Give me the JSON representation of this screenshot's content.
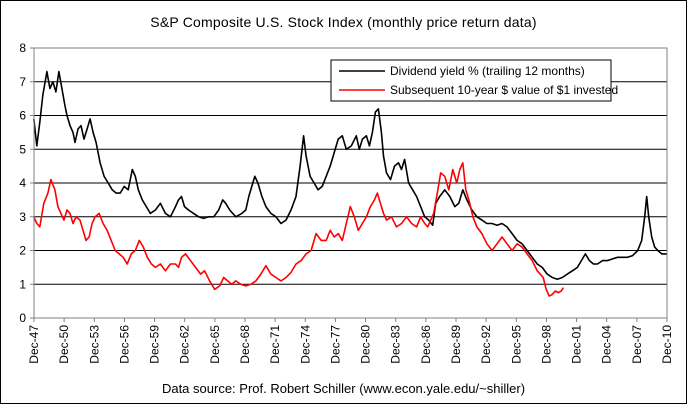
{
  "chart_data": {
    "type": "line",
    "title": "S&P Composite U.S. Stock Index (monthly price return data)",
    "source": "Data source:  Prof. Robert Schiller (www.econ.yale.edu/~shiller)",
    "ylim": [
      0,
      8
    ],
    "yticks": [
      "0",
      "1",
      "2",
      "3",
      "4",
      "5",
      "6",
      "7",
      "8"
    ],
    "x_range": [
      1947.92,
      2010.92
    ],
    "xticks": [
      "Dec-47",
      "Dec-50",
      "Dec-53",
      "Dec-56",
      "Dec-59",
      "Dec-62",
      "Dec-65",
      "Dec-68",
      "Dec-71",
      "Dec-74",
      "Dec-77",
      "Dec-80",
      "Dec-83",
      "Dec-86",
      "Dec-89",
      "Dec-92",
      "Dec-95",
      "Dec-98",
      "Dec-01",
      "Dec-04",
      "Dec-07",
      "Dec-10"
    ],
    "grid": true,
    "legend_position": "top-right",
    "series": [
      {
        "name": "Dividend yield % (trailing 12 months)",
        "color": "#000000",
        "x": [
          1947.9,
          1948.2,
          1948.5,
          1948.8,
          1949.2,
          1949.5,
          1949.8,
          1950.1,
          1950.4,
          1950.7,
          1951.0,
          1951.2,
          1951.5,
          1951.8,
          1952.0,
          1952.3,
          1952.6,
          1952.9,
          1953.2,
          1953.5,
          1953.8,
          1954.1,
          1954.5,
          1954.9,
          1955.3,
          1955.7,
          1956.1,
          1956.5,
          1956.9,
          1957.3,
          1957.7,
          1958.0,
          1958.3,
          1958.7,
          1959.1,
          1959.5,
          1960.0,
          1960.5,
          1961.0,
          1961.5,
          1962.0,
          1962.3,
          1962.6,
          1962.9,
          1963.3,
          1963.8,
          1964.3,
          1964.8,
          1965.3,
          1965.8,
          1966.3,
          1966.7,
          1967.0,
          1967.4,
          1968.0,
          1968.6,
          1969.0,
          1969.3,
          1969.6,
          1969.9,
          1970.2,
          1970.6,
          1971.0,
          1971.5,
          1972.0,
          1972.5,
          1973.0,
          1973.5,
          1974.0,
          1974.4,
          1974.75,
          1975.0,
          1975.4,
          1975.8,
          1976.2,
          1976.6,
          1977.0,
          1977.4,
          1977.8,
          1978.2,
          1978.6,
          1979.0,
          1979.5,
          1980.0,
          1980.3,
          1980.6,
          1981.0,
          1981.3,
          1981.6,
          1981.9,
          1982.2,
          1982.5,
          1982.7,
          1983.0,
          1983.4,
          1983.8,
          1984.2,
          1984.5,
          1984.8,
          1985.2,
          1985.6,
          1986.0,
          1986.4,
          1986.8,
          1987.2,
          1987.6,
          1987.9,
          1988.3,
          1988.8,
          1989.3,
          1989.8,
          1990.2,
          1990.6,
          1991.0,
          1991.5,
          1992.0,
          1992.5,
          1993.0,
          1993.5,
          1994.0,
          1994.5,
          1995.0,
          1995.5,
          1996.0,
          1996.5,
          1997.0,
          1997.5,
          1998.0,
          1998.5,
          1999.0,
          1999.5,
          2000.0,
          2000.5,
          2001.0,
          2001.5,
          2002.0,
          2002.4,
          2002.8,
          2003.2,
          2003.6,
          2004.0,
          2004.5,
          2005.0,
          2005.5,
          2006.0,
          2006.5,
          2007.0,
          2007.5,
          2008.0,
          2008.4,
          2008.7,
          2008.9,
          2009.1,
          2009.4,
          2009.7,
          2010.0,
          2010.4,
          2010.9
        ],
        "values": [
          5.9,
          5.1,
          5.8,
          6.6,
          7.3,
          6.8,
          7.0,
          6.7,
          7.3,
          6.8,
          6.3,
          6.0,
          5.7,
          5.5,
          5.2,
          5.6,
          5.7,
          5.3,
          5.6,
          5.9,
          5.5,
          5.2,
          4.6,
          4.2,
          4.0,
          3.8,
          3.7,
          3.7,
          3.9,
          3.8,
          4.4,
          4.2,
          3.8,
          3.5,
          3.3,
          3.1,
          3.2,
          3.4,
          3.1,
          3.0,
          3.3,
          3.5,
          3.6,
          3.3,
          3.2,
          3.1,
          3.0,
          2.95,
          3.0,
          3.0,
          3.2,
          3.5,
          3.4,
          3.2,
          3.0,
          3.1,
          3.2,
          3.6,
          3.9,
          4.2,
          4.0,
          3.6,
          3.3,
          3.1,
          3.0,
          2.8,
          2.9,
          3.2,
          3.6,
          4.5,
          5.4,
          4.8,
          4.2,
          4.0,
          3.8,
          3.9,
          4.2,
          4.5,
          4.9,
          5.3,
          5.4,
          5.0,
          5.1,
          5.4,
          5.0,
          5.3,
          5.4,
          5.1,
          5.5,
          6.1,
          6.2,
          5.5,
          4.8,
          4.3,
          4.1,
          4.5,
          4.6,
          4.4,
          4.7,
          4.0,
          3.8,
          3.6,
          3.3,
          3.0,
          2.9,
          2.75,
          3.4,
          3.6,
          3.8,
          3.6,
          3.3,
          3.4,
          3.8,
          3.5,
          3.2,
          3.0,
          2.9,
          2.8,
          2.8,
          2.75,
          2.8,
          2.7,
          2.5,
          2.3,
          2.2,
          2.0,
          1.8,
          1.6,
          1.5,
          1.3,
          1.2,
          1.15,
          1.2,
          1.3,
          1.4,
          1.5,
          1.7,
          1.9,
          1.7,
          1.6,
          1.6,
          1.7,
          1.7,
          1.75,
          1.8,
          1.8,
          1.8,
          1.85,
          2.0,
          2.3,
          3.0,
          3.6,
          3.0,
          2.4,
          2.1,
          2.0,
          1.9,
          1.9
        ]
      },
      {
        "name": "Subsequent 10-year $ value of $1 invested",
        "color": "#ff0000",
        "x": [
          1947.9,
          1948.2,
          1948.5,
          1948.9,
          1949.3,
          1949.6,
          1950.0,
          1950.3,
          1950.6,
          1950.9,
          1951.2,
          1951.5,
          1951.8,
          1952.1,
          1952.5,
          1952.8,
          1953.1,
          1953.4,
          1953.7,
          1954.0,
          1954.4,
          1954.8,
          1955.2,
          1955.6,
          1956.0,
          1956.4,
          1956.8,
          1957.2,
          1957.6,
          1958.0,
          1958.4,
          1958.8,
          1959.2,
          1959.6,
          1960.0,
          1960.5,
          1961.0,
          1961.5,
          1962.0,
          1962.3,
          1962.6,
          1963.0,
          1963.5,
          1964.0,
          1964.5,
          1964.9,
          1965.4,
          1965.9,
          1966.4,
          1966.8,
          1967.2,
          1967.6,
          1968.0,
          1968.5,
          1969.0,
          1969.5,
          1970.0,
          1970.5,
          1971.0,
          1971.5,
          1972.0,
          1972.5,
          1973.0,
          1973.5,
          1974.0,
          1974.5,
          1975.0,
          1975.5,
          1976.0,
          1976.5,
          1977.0,
          1977.4,
          1977.8,
          1978.2,
          1978.6,
          1979.0,
          1979.4,
          1979.8,
          1980.2,
          1980.6,
          1981.0,
          1981.4,
          1981.8,
          1982.1,
          1982.4,
          1982.7,
          1983.0,
          1983.5,
          1984.0,
          1984.5,
          1985.0,
          1985.5,
          1986.0,
          1986.4,
          1986.8,
          1987.1,
          1987.4,
          1987.7,
          1988.0,
          1988.4,
          1988.8,
          1989.2,
          1989.6,
          1990.0,
          1990.3,
          1990.6,
          1990.9,
          1991.2,
          1991.6,
          1992.0,
          1992.5,
          1993.0,
          1993.5,
          1994.0,
          1994.5,
          1995.0,
          1995.5,
          1996.0,
          1996.5,
          1997.0,
          1997.5,
          1998.0,
          1998.3,
          1998.6,
          1998.9,
          1999.2,
          1999.5,
          1999.8,
          2000.1,
          2000.4,
          2000.6
        ],
        "values": [
          3.0,
          2.8,
          2.7,
          3.4,
          3.7,
          4.1,
          3.8,
          3.3,
          3.1,
          2.9,
          3.2,
          3.1,
          2.8,
          3.0,
          2.9,
          2.6,
          2.3,
          2.4,
          2.8,
          3.0,
          3.1,
          2.8,
          2.6,
          2.3,
          2.0,
          1.9,
          1.8,
          1.6,
          1.9,
          2.0,
          2.3,
          2.1,
          1.8,
          1.6,
          1.5,
          1.6,
          1.4,
          1.6,
          1.6,
          1.5,
          1.8,
          1.9,
          1.7,
          1.5,
          1.3,
          1.4,
          1.1,
          0.85,
          0.95,
          1.2,
          1.1,
          1.0,
          1.1,
          1.0,
          0.95,
          1.0,
          1.1,
          1.3,
          1.55,
          1.3,
          1.2,
          1.1,
          1.2,
          1.35,
          1.6,
          1.7,
          1.9,
          2.0,
          2.5,
          2.3,
          2.3,
          2.6,
          2.4,
          2.5,
          2.3,
          2.8,
          3.3,
          3.0,
          2.6,
          2.8,
          3.0,
          3.3,
          3.5,
          3.7,
          3.4,
          3.1,
          2.9,
          3.0,
          2.7,
          2.8,
          3.0,
          2.8,
          2.7,
          3.0,
          2.8,
          2.7,
          2.9,
          3.1,
          3.6,
          4.3,
          4.2,
          3.8,
          4.4,
          4.0,
          4.4,
          4.6,
          3.8,
          3.5,
          3.0,
          2.7,
          2.5,
          2.2,
          2.0,
          2.2,
          2.4,
          2.2,
          2.0,
          2.2,
          2.1,
          1.9,
          1.7,
          1.4,
          1.3,
          1.2,
          0.85,
          0.65,
          0.7,
          0.8,
          0.75,
          0.8,
          0.9
        ]
      }
    ]
  }
}
